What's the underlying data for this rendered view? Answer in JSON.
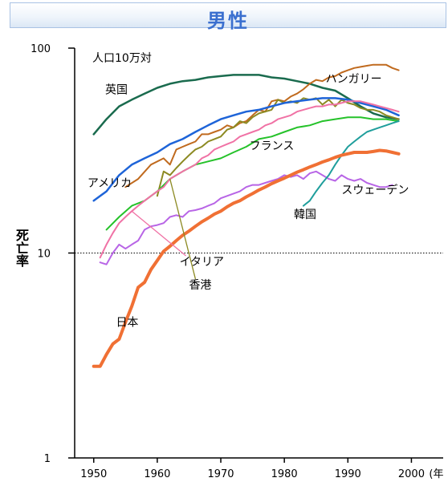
{
  "title": "男性",
  "ylabel": "死亡率",
  "chart_data": {
    "type": "line",
    "title": "男性",
    "ylabel": "死亡率",
    "xlabel": "(年",
    "yscale": "log",
    "ylim": [
      1,
      100
    ],
    "xlim": [
      1947,
      2005
    ],
    "yticks": [
      "1",
      "10",
      "100"
    ],
    "xticks": [
      "1950",
      "1960",
      "1970",
      "1980",
      "1990",
      "2000"
    ],
    "annotation": "人口10万対",
    "reference_line": 10,
    "series": [
      {
        "name": "英国",
        "color": "#1a6b4e",
        "width": 2.5,
        "label": {
          "x": 1951.8,
          "y": 60
        },
        "x": [
          1950,
          1952,
          1954,
          1956,
          1958,
          1960,
          1962,
          1964,
          1966,
          1968,
          1970,
          1972,
          1974,
          1976,
          1978,
          1980,
          1982,
          1984,
          1986,
          1988,
          1990,
          1992,
          1994,
          1996,
          1998
        ],
        "y": [
          38,
          45,
          52,
          56,
          60,
          64,
          67,
          69,
          70,
          72,
          73,
          74,
          74,
          74,
          72,
          71,
          69,
          67,
          64,
          62,
          57,
          52,
          48,
          46,
          45
        ]
      },
      {
        "name": "ハンガリー",
        "color": "#c06a1e",
        "width": 2,
        "label": {
          "x": 1986.5,
          "y": 68
        },
        "x": [
          1955,
          1957,
          1959,
          1961,
          1962,
          1963,
          1964,
          1965,
          1966,
          1967,
          1968,
          1969,
          1970,
          1971,
          1972,
          1973,
          1974,
          1975,
          1976,
          1977,
          1978,
          1979,
          1980,
          1981,
          1982,
          1983,
          1984,
          1985,
          1986,
          1987,
          1988,
          1989,
          1990,
          1991,
          1992,
          1993,
          1994,
          1995,
          1996,
          1997,
          1998
        ],
        "y": [
          21,
          23,
          27,
          29,
          27,
          32,
          33,
          34,
          35,
          38,
          38,
          39,
          40,
          42,
          41,
          43,
          44,
          47,
          50,
          49,
          55,
          56,
          55,
          58,
          60,
          63,
          67,
          70,
          69,
          72,
          73,
          76,
          78,
          80,
          81,
          82,
          83,
          83,
          83,
          80,
          78
        ]
      },
      {
        "name": "香港",
        "color": "#8c8a22",
        "width": 2,
        "label": {
          "x": 1965,
          "y": 6.7
        },
        "pointer": {
          "x": 1962,
          "y": 23
        },
        "x": [
          1960,
          1961,
          1962,
          1963,
          1964,
          1965,
          1966,
          1967,
          1968,
          1969,
          1970,
          1971,
          1972,
          1973,
          1974,
          1975,
          1976,
          1977,
          1978,
          1979,
          1980,
          1981,
          1982,
          1983,
          1984,
          1985,
          1986,
          1987,
          1988,
          1989,
          1990,
          1991,
          1992,
          1993,
          1994,
          1995,
          1996,
          1997,
          1998
        ],
        "y": [
          19,
          25,
          24,
          26,
          28,
          30,
          32,
          33,
          35,
          36,
          37,
          40,
          41,
          44,
          43,
          46,
          48,
          49,
          50,
          56,
          54,
          55,
          54,
          57,
          56,
          57,
          53,
          56,
          52,
          56,
          54,
          53,
          51,
          50,
          50,
          49,
          47,
          46,
          45
        ]
      },
      {
        "name": "アメリカ",
        "color": "#1e64d8",
        "width": 2.5,
        "label": {
          "x": 1949,
          "y": 21
        },
        "x": [
          1950,
          1952,
          1954,
          1956,
          1958,
          1960,
          1962,
          1964,
          1966,
          1968,
          1970,
          1972,
          1974,
          1976,
          1978,
          1980,
          1982,
          1984,
          1986,
          1988,
          1990,
          1992,
          1994,
          1996,
          1998
        ],
        "y": [
          18,
          20,
          24,
          27,
          29,
          31,
          34,
          36,
          39,
          42,
          45,
          47,
          49,
          50,
          52,
          54,
          55,
          56,
          57,
          57,
          56,
          54,
          52,
          50,
          47
        ]
      },
      {
        "name": "フランス",
        "color": "#25c22a",
        "width": 2,
        "label": {
          "x": 1974.5,
          "y": 32
        },
        "x": [
          1952,
          1954,
          1956,
          1958,
          1960,
          1962,
          1964,
          1966,
          1968,
          1970,
          1972,
          1974,
          1976,
          1978,
          1980,
          1982,
          1984,
          1986,
          1988,
          1990,
          1992,
          1994,
          1996,
          1998
        ],
        "y": [
          13,
          15,
          17,
          18,
          20,
          23,
          25,
          27,
          28,
          29,
          31,
          33,
          36,
          37,
          39,
          41,
          42,
          44,
          45,
          46,
          46,
          45,
          45,
          44
        ]
      },
      {
        "name": "イタリア",
        "color": "#f072a5",
        "width": 2,
        "label": {
          "x": 1963.5,
          "y": 8.7
        },
        "pointer": {
          "x": 1956,
          "y": 16
        },
        "x": [
          1951,
          1952,
          1953,
          1954,
          1955,
          1956,
          1957,
          1958,
          1959,
          1960,
          1961,
          1962,
          1963,
          1964,
          1965,
          1966,
          1967,
          1968,
          1969,
          1970,
          1971,
          1972,
          1973,
          1974,
          1975,
          1976,
          1977,
          1978,
          1979,
          1980,
          1981,
          1982,
          1983,
          1984,
          1985,
          1986,
          1987,
          1988,
          1989,
          1990,
          1991,
          1992,
          1993,
          1994,
          1995,
          1996,
          1997,
          1998
        ],
        "y": [
          9.5,
          11,
          12.5,
          14,
          15,
          16,
          17,
          18,
          19,
          20,
          21,
          23,
          24,
          25,
          26,
          27,
          29,
          30,
          32,
          33,
          34,
          35,
          37,
          38,
          39,
          40,
          42,
          43,
          45,
          46,
          47,
          49,
          50,
          51,
          52,
          52,
          53,
          53,
          54,
          55,
          55,
          55,
          54,
          53,
          52,
          51,
          50,
          49
        ]
      },
      {
        "name": "スウェーデン",
        "color": "#b865e6",
        "width": 2,
        "label": {
          "x": 1989,
          "y": 19.5
        },
        "x": [
          1951,
          1952,
          1953,
          1954,
          1955,
          1956,
          1957,
          1958,
          1959,
          1960,
          1961,
          1962,
          1963,
          1964,
          1965,
          1966,
          1967,
          1968,
          1969,
          1970,
          1971,
          1972,
          1973,
          1974,
          1975,
          1976,
          1977,
          1978,
          1979,
          1980,
          1981,
          1982,
          1983,
          1984,
          1985,
          1986,
          1987,
          1988,
          1989,
          1990,
          1991,
          1992,
          1993,
          1994,
          1995,
          1996,
          1997
        ],
        "y": [
          9,
          8.8,
          10,
          11,
          10.5,
          11,
          11.5,
          13,
          13.5,
          13.7,
          14,
          15,
          15.3,
          15,
          16,
          16.2,
          16.5,
          17,
          17.5,
          18.5,
          19,
          19.5,
          20,
          21,
          21.5,
          21.5,
          22,
          22.5,
          23,
          24,
          23.5,
          24,
          23,
          24.5,
          25,
          24,
          23,
          22.5,
          24,
          23,
          22.5,
          23,
          22,
          21.5,
          21,
          21,
          21.5
        ]
      },
      {
        "name": "韓国",
        "color": "#1f9e9c",
        "width": 2,
        "label": {
          "x": 1981.5,
          "y": 14.8
        },
        "x": [
          1983,
          1984,
          1985,
          1986,
          1987,
          1988,
          1989,
          1990,
          1991,
          1992,
          1993,
          1994,
          1995,
          1996,
          1997,
          1998
        ],
        "y": [
          17,
          18,
          20,
          22,
          24,
          27,
          30,
          33,
          35,
          37,
          39,
          40,
          41,
          42,
          43,
          44
        ]
      },
      {
        "name": "日本",
        "color": "#f07034",
        "width": 4,
        "label": {
          "x": 1953.5,
          "y": 4.4
        },
        "x": [
          1950,
          1951,
          1952,
          1953,
          1954,
          1955,
          1956,
          1957,
          1958,
          1959,
          1960,
          1961,
          1962,
          1963,
          1964,
          1965,
          1966,
          1967,
          1968,
          1969,
          1970,
          1971,
          1972,
          1973,
          1974,
          1975,
          1976,
          1977,
          1978,
          1979,
          1980,
          1981,
          1982,
          1983,
          1984,
          1985,
          1986,
          1987,
          1988,
          1989,
          1990,
          1991,
          1992,
          1993,
          1994,
          1995,
          1996,
          1997,
          1998
        ],
        "y": [
          2.8,
          2.8,
          3.2,
          3.6,
          3.8,
          4.6,
          5.5,
          6.8,
          7.2,
          8.3,
          9.2,
          10.2,
          10.8,
          11.5,
          12.2,
          12.8,
          13.5,
          14.2,
          14.8,
          15.5,
          16,
          16.8,
          17.5,
          18,
          18.8,
          19.5,
          20.3,
          21,
          21.8,
          22.5,
          23.2,
          24,
          24.8,
          25.5,
          26.3,
          27,
          27.8,
          28.5,
          29.3,
          30,
          30.5,
          31,
          31,
          31,
          31.3,
          31.7,
          31.5,
          31,
          30.5
        ]
      }
    ]
  }
}
